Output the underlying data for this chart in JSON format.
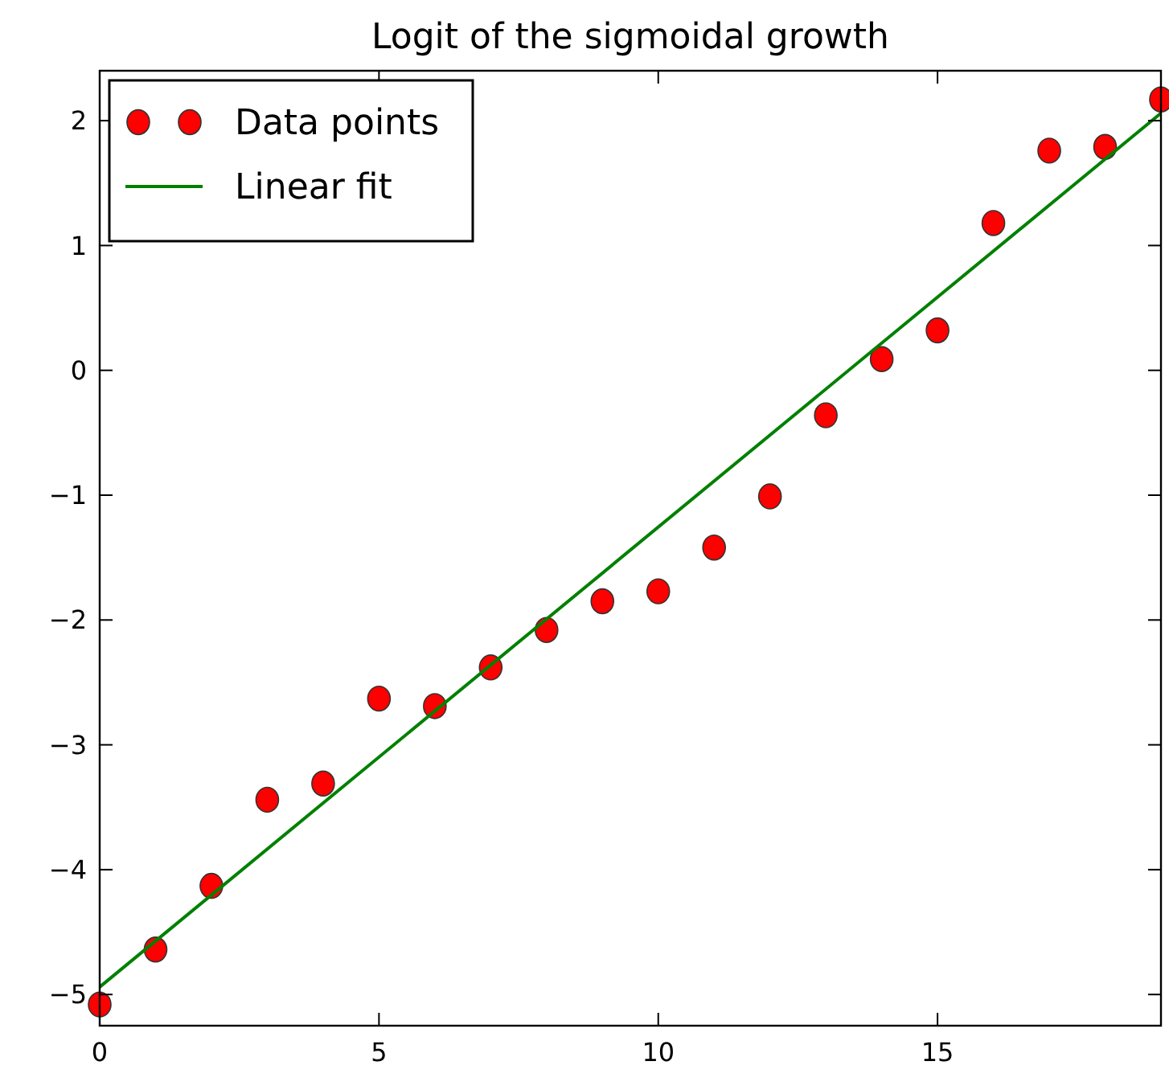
{
  "chart_data": {
    "type": "scatter",
    "title": "Logit of the sigmoidal growth",
    "xlim": [
      0,
      19
    ],
    "ylim": [
      -5.25,
      2.4
    ],
    "xticks": [
      0,
      5,
      10,
      15
    ],
    "yticks": [
      -5,
      -4,
      -3,
      -2,
      -1,
      0,
      1,
      2
    ],
    "legend": "top left",
    "grid": false,
    "series": [
      {
        "name": "Data points",
        "marker": "circle",
        "color": "#ff0000",
        "x": [
          0,
          1,
          2,
          3,
          4,
          5,
          6,
          7,
          8,
          9,
          10,
          11,
          12,
          13,
          14,
          15,
          16,
          17,
          18,
          19
        ],
        "values": [
          -5.08,
          -4.64,
          -4.13,
          -3.44,
          -3.31,
          -2.63,
          -2.69,
          -2.38,
          -2.08,
          -1.85,
          -1.77,
          -1.42,
          -1.01,
          -0.36,
          0.09,
          0.32,
          1.18,
          1.76,
          1.79,
          2.17
        ]
      },
      {
        "name": "Linear fit",
        "type": "line",
        "marker": "none",
        "line_style": "solid",
        "color": "#008000",
        "x": [
          0,
          19
        ],
        "values": [
          -4.94,
          2.06
        ]
      }
    ]
  }
}
